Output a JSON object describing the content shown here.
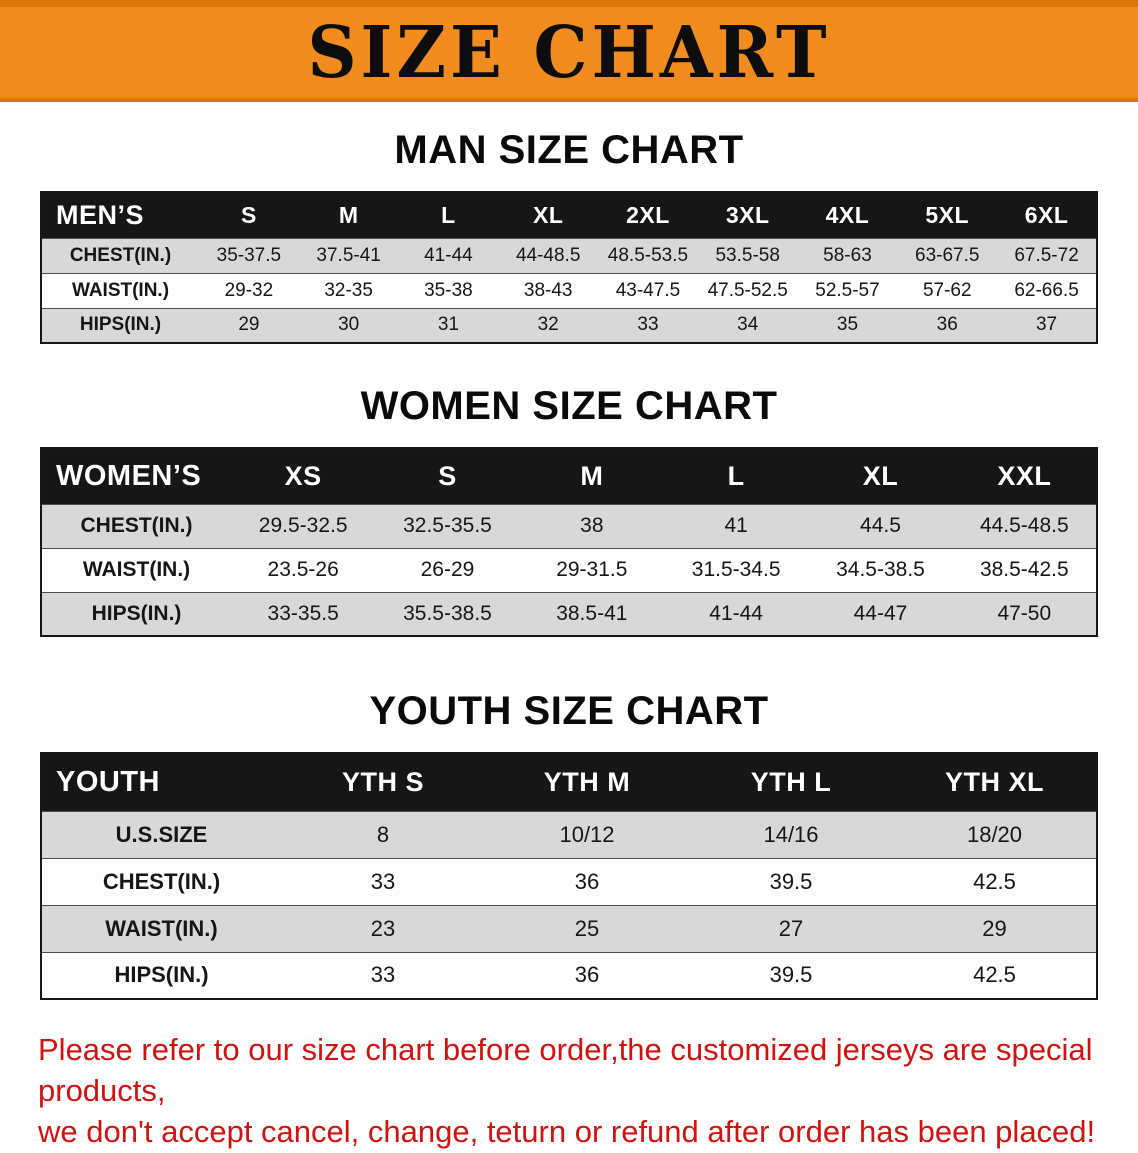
{
  "banner": {
    "title": "SIZE CHART"
  },
  "colors": {
    "banner_bg": "#F28C1E",
    "banner_edge": "#D9770F",
    "header_bg": "#161616",
    "shaded_row": "#d8d8d8",
    "footer_text": "#CE1310"
  },
  "sections": [
    {
      "heading": "MAN SIZE CHART",
      "table": {
        "header": [
          "MEN’S",
          "S",
          "M",
          "L",
          "XL",
          "2XL",
          "3XL",
          "4XL",
          "5XL",
          "6XL"
        ],
        "rows": [
          {
            "label": "CHEST(IN.)",
            "values": [
              "35-37.5",
              "37.5-41",
              "41-44",
              "44-48.5",
              "48.5-53.5",
              "53.5-58",
              "58-63",
              "63-67.5",
              "67.5-72"
            ]
          },
          {
            "label": "WAIST(IN.)",
            "values": [
              "29-32",
              "32-35",
              "35-38",
              "38-43",
              "43-47.5",
              "47.5-52.5",
              "52.5-57",
              "57-62",
              "62-66.5"
            ]
          },
          {
            "label": "HIPS(IN.)",
            "values": [
              "29",
              "30",
              "31",
              "32",
              "33",
              "34",
              "35",
              "36",
              "37"
            ]
          }
        ]
      }
    },
    {
      "heading": "WOMEN SIZE CHART",
      "table": {
        "header": [
          "WOMEN’S",
          "XS",
          "S",
          "M",
          "L",
          "XL",
          "XXL"
        ],
        "rows": [
          {
            "label": "CHEST(IN.)",
            "values": [
              "29.5-32.5",
              "32.5-35.5",
              "38",
              "41",
              "44.5",
              "44.5-48.5"
            ]
          },
          {
            "label": "WAIST(IN.)",
            "values": [
              "23.5-26",
              "26-29",
              "29-31.5",
              "31.5-34.5",
              "34.5-38.5",
              "38.5-42.5"
            ]
          },
          {
            "label": "HIPS(IN.)",
            "values": [
              "33-35.5",
              "35.5-38.5",
              "38.5-41",
              "41-44",
              "44-47",
              "47-50"
            ]
          }
        ]
      }
    },
    {
      "heading": "YOUTH SIZE CHART",
      "table": {
        "header": [
          "YOUTH",
          "YTH S",
          "YTH M",
          "YTH L",
          "YTH XL"
        ],
        "rows": [
          {
            "label": "U.S.SIZE",
            "values": [
              "8",
              "10/12",
              "14/16",
              "18/20"
            ]
          },
          {
            "label": "CHEST(IN.)",
            "values": [
              "33",
              "36",
              "39.5",
              "42.5"
            ]
          },
          {
            "label": "WAIST(IN.)",
            "values": [
              "23",
              "25",
              "27",
              "29"
            ]
          },
          {
            "label": "HIPS(IN.)",
            "values": [
              "33",
              "36",
              "39.5",
              "42.5"
            ]
          }
        ]
      }
    }
  ],
  "footer": {
    "lines": [
      "Please refer to our size chart before order,the customized jerseys are special products,",
      "we don't accept cancel, change, teturn or refund after order has been placed!"
    ]
  }
}
